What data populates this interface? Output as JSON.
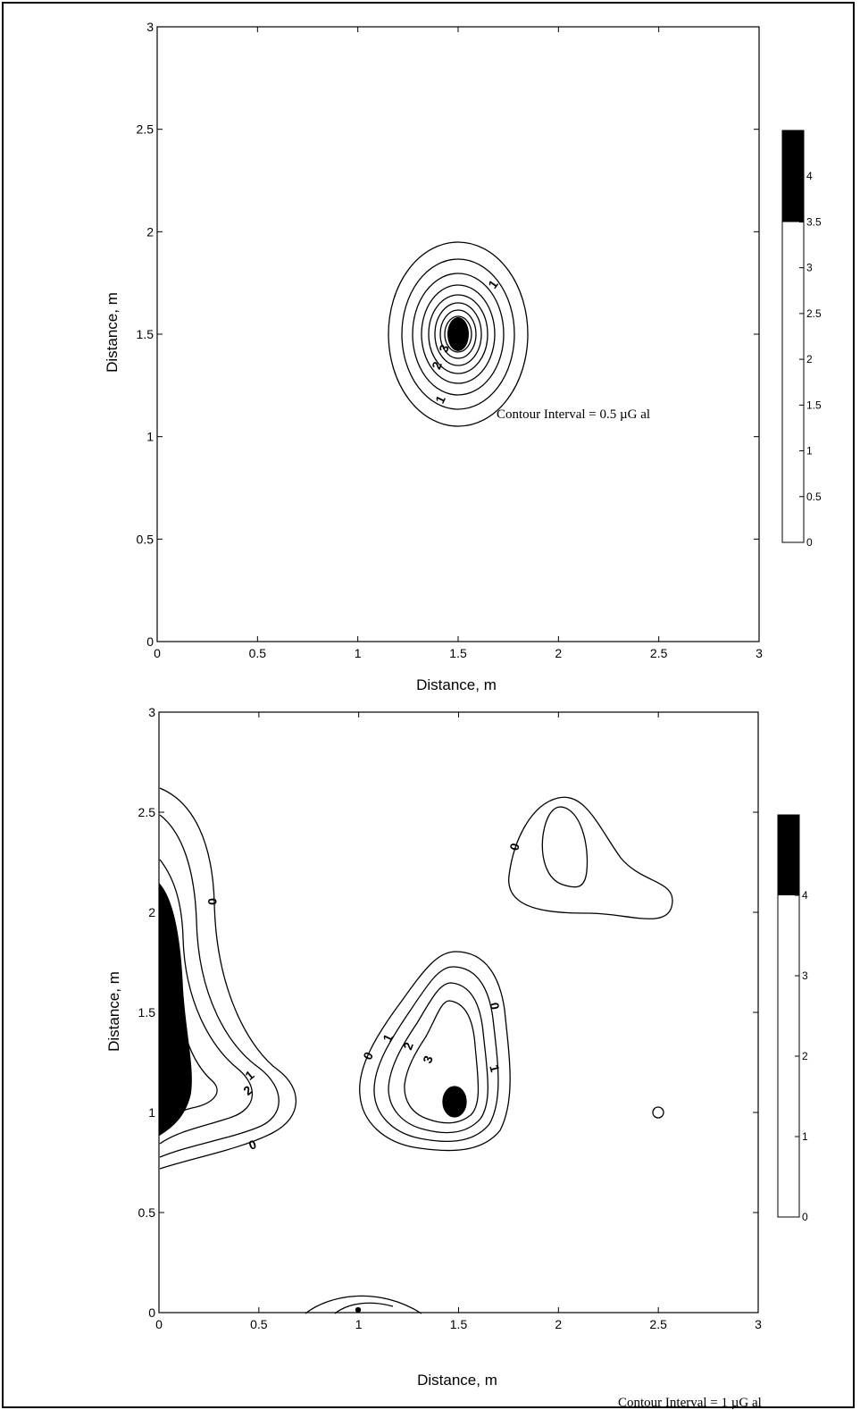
{
  "chart_data": [
    {
      "type": "contour",
      "xlabel": "Distance, m",
      "ylabel": "Distance, m",
      "xlim": [
        0,
        3
      ],
      "ylim": [
        0,
        3
      ],
      "xticks": [
        "0",
        "0.5",
        "1",
        "1.5",
        "2",
        "2.5",
        "3"
      ],
      "yticks": [
        "0",
        "0.5",
        "1",
        "1.5",
        "2",
        "2.5",
        "3"
      ],
      "annotation": "Contour Interval = 0.5 µG   al",
      "colorbar": {
        "range": [
          0,
          4.5
        ],
        "ticks": [
          "0",
          "0.5",
          "1",
          "1.5",
          "2",
          "2.5",
          "3",
          "3.5",
          "4"
        ],
        "filled_above": 3.5
      },
      "contour_levels": [
        0.5,
        1,
        1.5,
        2,
        2.5,
        3,
        3.5,
        4
      ],
      "contour_labels": [
        "1",
        "1",
        "2",
        "3"
      ],
      "anomaly": {
        "center": [
          1.5,
          1.5
        ],
        "peak_min": 3.5
      }
    },
    {
      "type": "contour",
      "xlabel": "Distance, m",
      "ylabel": "Distance, m",
      "xlim": [
        0,
        3
      ],
      "ylim": [
        0,
        3
      ],
      "xticks": [
        "0",
        "0.5",
        "1",
        "1.5",
        "2",
        "2.5",
        "3"
      ],
      "yticks": [
        "0",
        "0.5",
        "1",
        "1.5",
        "2",
        "2.5",
        "3"
      ],
      "annotation": "Contour Interval = 1 µG   al",
      "colorbar": {
        "range": [
          0,
          5
        ],
        "ticks": [
          "0",
          "1",
          "2",
          "3",
          "4"
        ],
        "filled_above": 4
      },
      "contour_levels": [
        0,
        1,
        2,
        3,
        4
      ],
      "contour_labels": [
        "0",
        "1",
        "2",
        "0",
        "0",
        "1",
        "2",
        "3",
        "0",
        "1",
        "0"
      ],
      "anomalies": [
        {
          "name": "left edge",
          "center": [
            0,
            1.5
          ],
          "peak_min": 4
        },
        {
          "name": "center",
          "center": [
            1.5,
            1.05
          ],
          "peak_min": 4
        },
        {
          "name": "upper right",
          "center": [
            2.05,
            2.25
          ]
        },
        {
          "name": "small",
          "center": [
            2.5,
            1.0
          ]
        }
      ]
    }
  ]
}
